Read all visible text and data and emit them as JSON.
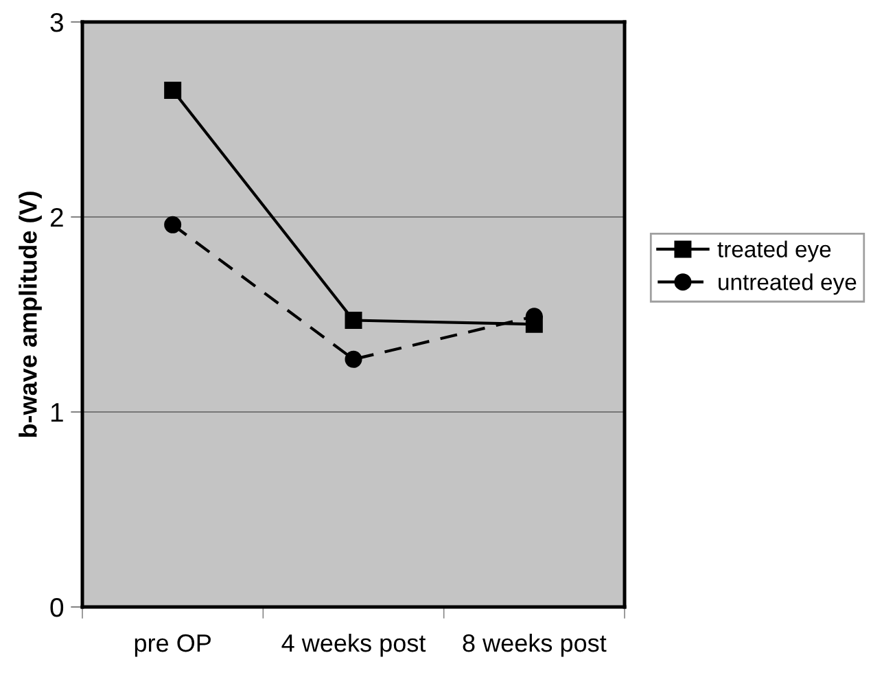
{
  "chart_data": {
    "type": "line",
    "ylabel": "b-wave amplitude (V)",
    "categories": [
      "pre OP",
      "4 weeks post",
      "8 weeks post"
    ],
    "series": [
      {
        "name": "treated eye",
        "color": "#000000",
        "values": [
          2.65,
          1.47,
          1.45
        ],
        "marker": "square",
        "line_style": "solid"
      },
      {
        "name": "untreated eye",
        "color": "#000000",
        "values": [
          1.96,
          1.27,
          1.49
        ],
        "marker": "circle",
        "line_style": "dashed"
      }
    ],
    "ylim": [
      0,
      3
    ],
    "yticks": [
      0,
      1,
      2,
      3
    ],
    "grid": "y",
    "legend": "right"
  }
}
